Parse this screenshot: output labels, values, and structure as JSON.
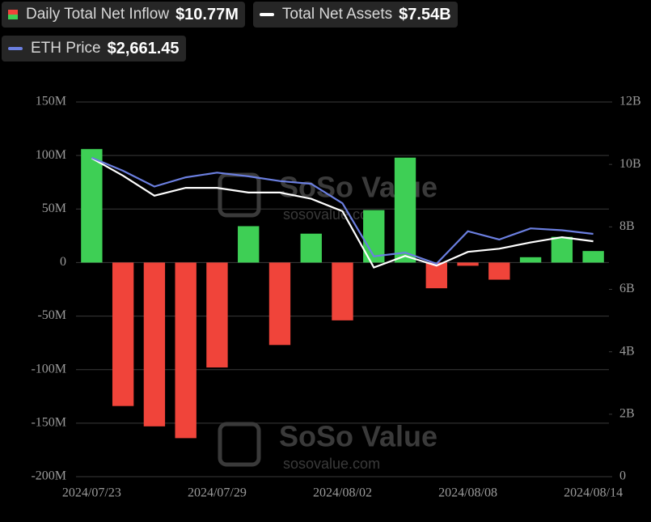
{
  "chart_data": {
    "type": "bar-line",
    "categories": [
      "2024/07/23",
      null,
      null,
      null,
      "2024/07/29",
      null,
      null,
      null,
      "2024/08/02",
      null,
      null,
      null,
      "2024/08/08",
      null,
      null,
      null,
      "2024/08/14"
    ],
    "series": [
      {
        "name": "Daily Total Net Inflow",
        "type": "bar",
        "legend_value": "$10.77M",
        "color_positive": "#3ecf55",
        "color_negative": "#f0443a",
        "values": [
          106,
          -134,
          -153,
          -164,
          -98,
          34,
          -77,
          27,
          -54,
          49,
          98,
          -24,
          -3,
          -16,
          5,
          24,
          10.77
        ]
      },
      {
        "name": "Total Net Assets",
        "type": "line",
        "axis": "y2",
        "color": "#ffffff",
        "legend_value": "$7.54B",
        "values": [
          10.2,
          9.64,
          9.0,
          9.25,
          9.25,
          9.1,
          9.1,
          8.9,
          8.5,
          6.7,
          7.07,
          6.76,
          7.2,
          7.3,
          7.5,
          7.67,
          7.54
        ]
      },
      {
        "name": "ETH Price",
        "type": "line",
        "axis": "y3",
        "color": "#6b7fe0",
        "legend_value": "$2,661.45",
        "values": [
          3480,
          3340,
          3170,
          3270,
          3320,
          3280,
          3230,
          3200,
          2990,
          2420,
          2460,
          2340,
          2690,
          2600,
          2720,
          2700,
          2661.45
        ]
      }
    ],
    "ylim": [
      -200,
      150
    ],
    "yticks": [
      {
        "value": -200,
        "label": "-200M"
      },
      {
        "value": -150,
        "label": "-150M"
      },
      {
        "value": -100,
        "label": "-100M"
      },
      {
        "value": -50,
        "label": "-50M"
      },
      0,
      {
        "value": 50,
        "label": "50M"
      },
      {
        "value": 100,
        "label": "100M"
      },
      {
        "value": 150,
        "label": "150M"
      }
    ],
    "y2lim": [
      0,
      12
    ],
    "y2ticks": [
      0,
      {
        "value": 2,
        "label": "2B"
      },
      {
        "value": 4,
        "label": "4B"
      },
      {
        "value": 6,
        "label": "6B"
      },
      {
        "value": 8,
        "label": "8B"
      },
      {
        "value": 10,
        "label": "10B"
      },
      {
        "value": 12,
        "label": "12B"
      }
    ],
    "y3lim": [
      50,
      4080
    ],
    "grid": true,
    "watermark": {
      "brand": "SoSo Value",
      "site": "sosovalue.com"
    }
  }
}
